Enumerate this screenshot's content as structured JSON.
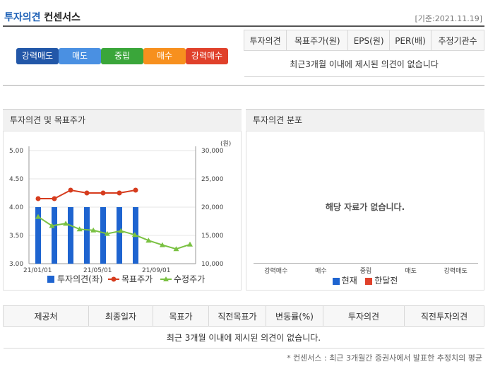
{
  "header": {
    "title_part1": "투자의견",
    "title_part2": "컨센서스",
    "base_date": "[기준:2021.11.19]"
  },
  "opinion_scale": [
    {
      "label": "강력매도",
      "color": "#2257a8"
    },
    {
      "label": "매도",
      "color": "#4a90e2"
    },
    {
      "label": "중립",
      "color": "#3aa63a"
    },
    {
      "label": "매수",
      "color": "#f7901e"
    },
    {
      "label": "강력매수",
      "color": "#e0412b"
    }
  ],
  "consensus_table": {
    "headers": [
      "투자의견",
      "목표주가(원)",
      "EPS(원)",
      "PER(배)",
      "추정기관수"
    ],
    "empty_message": "최근3개월 이내에 제시된 의견이 없습니다"
  },
  "chart_panel": {
    "title": "투자의견 및 목표주가",
    "unit": "(원)"
  },
  "distribution_panel": {
    "title": "투자의견 분포",
    "empty_message": "해당 자료가 없습니다.",
    "categories": [
      "강력매수",
      "매수",
      "중립",
      "매도",
      "강력매도"
    ],
    "legend": [
      {
        "label": "현재",
        "color": "#1e64d0"
      },
      {
        "label": "한달전",
        "color": "#e0412b"
      }
    ]
  },
  "chart_data": {
    "type": "bar",
    "x_ticks": [
      "21/01/01",
      "21/05/01",
      "21/09/01"
    ],
    "left_axis": {
      "ticks": [
        "5.00",
        "4.50",
        "4.00",
        "3.50",
        "3.00"
      ],
      "ylim": [
        3.0,
        5.0
      ]
    },
    "right_axis": {
      "ticks": [
        "30,000",
        "25,000",
        "20,000",
        "15,000",
        "10,000"
      ],
      "ylim": [
        10000,
        30000
      ]
    },
    "series": [
      {
        "name": "투자의견(좌)",
        "type": "bar",
        "color": "#1e64d0",
        "values": [
          4.0,
          4.0,
          4.0,
          4.0,
          4.0,
          4.0,
          4.0
        ]
      },
      {
        "name": "목표주가",
        "type": "line",
        "color": "#d63c1e",
        "values": [
          21500,
          21500,
          23000,
          22500,
          22500,
          22500,
          23000
        ]
      },
      {
        "name": "수정주가",
        "type": "line",
        "color": "#7ac142",
        "values": [
          18300,
          16700,
          17100,
          16100,
          15900,
          15300,
          15800,
          15100,
          14100,
          13300,
          12600,
          13400
        ]
      }
    ],
    "grid": true
  },
  "history_table": {
    "headers": [
      "제공처",
      "최종일자",
      "목표가",
      "직전목표가",
      "변동률(%)",
      "투자의견",
      "직전투자의견"
    ],
    "empty_message": "최근 3개월 이내에 제시된 의견이 없습니다."
  },
  "footnote": "* 컨센서스 : 최근 3개월간 증권사에서 발표한 추정치의 평균"
}
